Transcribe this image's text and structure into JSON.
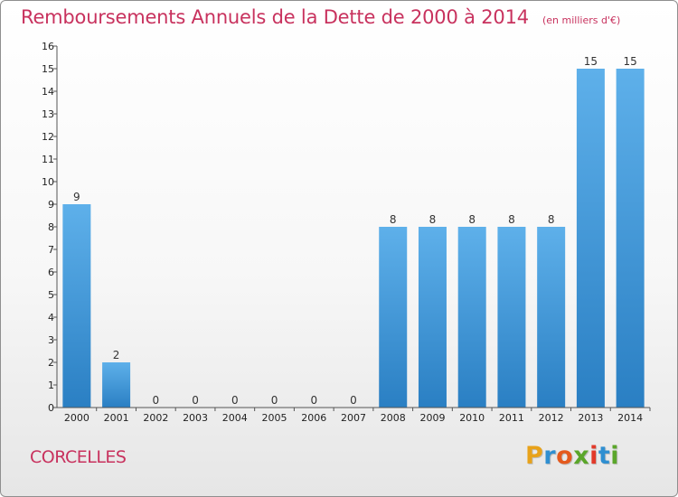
{
  "title": "Remboursements Annuels de la Dette de 2000 à 2014",
  "unit": "(en milliers d'€)",
  "commune": "CORCELLES",
  "brand": {
    "letters": [
      "P",
      "r",
      "o",
      "x",
      "i",
      "t",
      "i"
    ],
    "colors": [
      "#e8a21a",
      "#2f8fd1",
      "#e45a1e",
      "#5aa62a",
      "#e23a2a",
      "#2f8fd1",
      "#5aa62a"
    ]
  },
  "chart_data": {
    "type": "bar",
    "categories": [
      "2000",
      "2001",
      "2002",
      "2003",
      "2004",
      "2005",
      "2006",
      "2007",
      "2008",
      "2009",
      "2010",
      "2011",
      "2012",
      "2013",
      "2014"
    ],
    "values": [
      9,
      2,
      0,
      0,
      0,
      0,
      0,
      0,
      8,
      8,
      8,
      8,
      8,
      15,
      15
    ],
    "ylim": [
      0,
      16
    ],
    "yticks": [
      0,
      1,
      2,
      3,
      4,
      5,
      6,
      7,
      8,
      9,
      10,
      11,
      12,
      13,
      14,
      15,
      16
    ],
    "bar_color_top": "#5eb0ea",
    "bar_color_bottom": "#2a7fc3",
    "axis_color": "#555555",
    "grid": false
  }
}
